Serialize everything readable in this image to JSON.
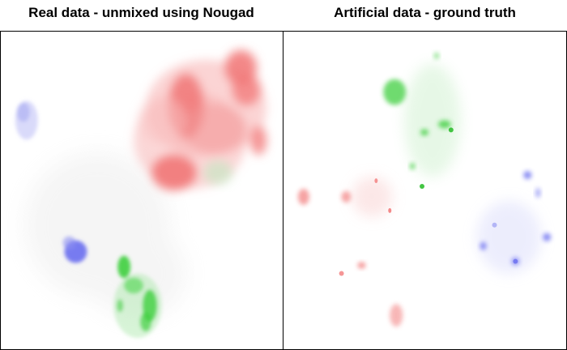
{
  "panels": [
    {
      "title": "Real data - unmixed using Nougad"
    },
    {
      "title": "Artificial data - ground truth"
    }
  ],
  "colors": {
    "red": "#f27c7c",
    "green": "#3fcf3f",
    "blue": "#6a6ef0"
  }
}
